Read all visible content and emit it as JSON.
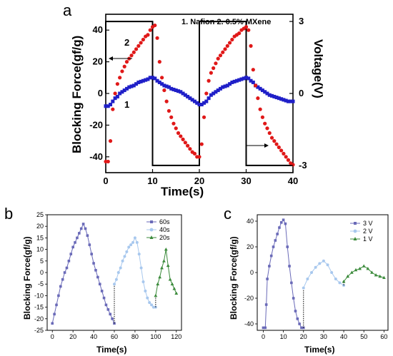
{
  "panels": {
    "a": {
      "letter": "a"
    },
    "b": {
      "letter": "b"
    },
    "c": {
      "letter": "c"
    }
  },
  "chart_data": [
    {
      "id": "a",
      "type": "scatter",
      "xlabel": "Time(s)",
      "ylabel": "Blocking Force(gf/g)",
      "y2label": "Voltage(V)",
      "xlim": [
        0,
        40
      ],
      "ylim": [
        -50,
        50
      ],
      "y2lim": [
        -3.3,
        3.3
      ],
      "xticks": [
        "0",
        "10",
        "20",
        "30",
        "40"
      ],
      "yticks": [
        "-40",
        "-20",
        "0",
        "20",
        "40"
      ],
      "y2ticks": [
        "-3",
        "0",
        "3"
      ],
      "legend_text": "1.  Nafion   2.  0.5% MXene",
      "curve_labels": [
        "1",
        "2"
      ],
      "colors": {
        "nafion": "#1f1fc8",
        "mxene": "#e01818",
        "voltage": "#000000"
      },
      "voltage": {
        "x": [
          0,
          0,
          10,
          10,
          20,
          20,
          30,
          30,
          40
        ],
        "y": [
          0,
          3,
          3,
          -3,
          -3,
          3,
          3,
          -3,
          -3
        ]
      },
      "series": [
        {
          "name": "1",
          "x": [
            0,
            0.5,
            1,
            1.5,
            2,
            2.5,
            3,
            3.5,
            4,
            4.5,
            5,
            5.5,
            6,
            6.5,
            7,
            7.5,
            8,
            8.5,
            9,
            9.5,
            10,
            10.5,
            11,
            11.5,
            12,
            12.5,
            13,
            13.5,
            14,
            14.5,
            15,
            15.5,
            16,
            16.5,
            17,
            17.5,
            18,
            18.5,
            19,
            19.5,
            20,
            20.5,
            21,
            21.5,
            22,
            22.5,
            23,
            23.5,
            24,
            24.5,
            25,
            25.5,
            26,
            26.5,
            27,
            27.5,
            28,
            28.5,
            29,
            29.5,
            30,
            30.5,
            31,
            31.5,
            32,
            32.5,
            33,
            33.5,
            34,
            34.5,
            35,
            35.5,
            36,
            36.5,
            37,
            37.5,
            38,
            38.5,
            39,
            39.5,
            40
          ],
          "y": [
            -8,
            -8,
            -7,
            -5,
            -3,
            -2,
            0,
            1,
            2,
            3,
            4,
            4.5,
            5,
            6,
            7,
            7.5,
            8,
            8.5,
            9,
            10,
            10,
            9.5,
            8,
            7,
            6,
            5,
            4.5,
            4,
            3,
            2.5,
            2,
            1.5,
            1,
            0,
            -1,
            -2,
            -3,
            -4,
            -5,
            -6,
            -7,
            -7,
            -6,
            -5,
            -3,
            -1,
            0,
            1,
            2,
            3,
            4,
            4.5,
            5,
            6,
            7,
            7.5,
            8,
            8.5,
            9,
            9.5,
            10,
            9.5,
            8,
            7,
            5,
            4,
            3,
            2,
            1,
            0,
            -1,
            -1.5,
            -2,
            -2.5,
            -3,
            -3.5,
            -4,
            -4.5,
            -5,
            -5,
            -5
          ]
        },
        {
          "name": "2",
          "x": [
            0,
            0.5,
            1,
            1.5,
            2,
            2.5,
            3,
            3.5,
            4,
            4.5,
            5,
            5.5,
            6,
            6.5,
            7,
            7.5,
            8,
            8.5,
            9,
            9.5,
            10,
            10.5,
            11,
            11.5,
            12,
            12.5,
            13,
            13.5,
            14,
            14.5,
            15,
            15.5,
            16,
            16.5,
            17,
            17.5,
            18,
            18.5,
            19,
            19.5,
            20,
            20.5,
            21,
            21.5,
            22,
            22.5,
            23,
            23.5,
            24,
            24.5,
            25,
            25.5,
            26,
            26.5,
            27,
            27.5,
            28,
            28.5,
            29,
            29.5,
            30,
            30.5,
            31,
            31.5,
            32,
            32.5,
            33,
            33.5,
            34,
            34.5,
            35,
            35.5,
            36,
            36.5,
            37,
            37.5,
            38,
            38.5,
            39,
            39.5,
            40
          ],
          "y": [
            -43,
            -43,
            -30,
            -10,
            0,
            6,
            10,
            14,
            17,
            20,
            22,
            24,
            26,
            28,
            30,
            32,
            34,
            36,
            37,
            40,
            42,
            43,
            35,
            20,
            10,
            2,
            -5,
            -11,
            -15,
            -19,
            -22,
            -25,
            -27,
            -29,
            -31,
            -33,
            -35,
            -37,
            -38,
            -40,
            -40,
            -32,
            -15,
            0,
            8,
            13,
            16,
            19,
            22,
            24,
            26,
            28,
            30,
            32,
            34,
            36,
            37,
            38,
            40,
            41,
            42,
            40,
            30,
            15,
            5,
            -3,
            -10,
            -15,
            -19,
            -22,
            -25,
            -28,
            -30,
            -32,
            -34,
            -36,
            -38,
            -40,
            -42,
            -44,
            -45
          ]
        }
      ]
    },
    {
      "id": "b",
      "type": "line",
      "xlabel": "Time(s)",
      "ylabel": "Blocking Force(gf/g)",
      "xlim": [
        -5,
        125
      ],
      "ylim": [
        -25,
        25
      ],
      "xticks": [
        "0",
        "20",
        "40",
        "60",
        "80",
        "100",
        "120"
      ],
      "yticks": [
        "-25",
        "-20",
        "-15",
        "-10",
        "-5",
        "0",
        "5",
        "10",
        "15",
        "20",
        "25"
      ],
      "colors": {
        "s60": "#6a6ab8",
        "s40": "#a8c8ee",
        "s20": "#3a8a3a"
      },
      "series": [
        {
          "name": "60s",
          "x": [
            0,
            2,
            4,
            6,
            8,
            10,
            12,
            14,
            16,
            18,
            20,
            22,
            24,
            26,
            28,
            30,
            32,
            34,
            36,
            38,
            40,
            42,
            44,
            46,
            48,
            50,
            52,
            54,
            56,
            58,
            60
          ],
          "y": [
            -22,
            -18,
            -14,
            -10,
            -6,
            -3,
            0,
            2,
            5,
            8,
            11,
            13,
            15,
            17,
            19,
            21,
            19,
            16,
            12,
            8,
            4,
            1,
            -2,
            -5,
            -8,
            -11,
            -14,
            -16,
            -18,
            -20,
            -22
          ]
        },
        {
          "name": "40s",
          "x": [
            60,
            62,
            64,
            66,
            68,
            70,
            72,
            74,
            76,
            78,
            80,
            82,
            84,
            86,
            88,
            90,
            92,
            94,
            96,
            98,
            100
          ],
          "y": [
            -5,
            -3,
            0,
            2,
            5,
            7,
            9,
            11,
            12,
            13,
            15,
            13,
            8,
            2,
            -4,
            -8,
            -11,
            -13,
            -14,
            -15,
            -15
          ]
        },
        {
          "name": "20s",
          "x": [
            100,
            102,
            104,
            106,
            108,
            110,
            112,
            114,
            116,
            118,
            120
          ],
          "y": [
            -10,
            -5,
            -2,
            2,
            5,
            10,
            3,
            -3,
            -5,
            -7,
            -9
          ]
        }
      ]
    },
    {
      "id": "c",
      "type": "line",
      "xlabel": "Time(s)",
      "ylabel": "Blocking Force(gf/g)",
      "xlim": [
        -3,
        62
      ],
      "ylim": [
        -45,
        45
      ],
      "xticks": [
        "0",
        "10",
        "20",
        "30",
        "40",
        "50",
        "60"
      ],
      "yticks": [
        "-40",
        "-20",
        "0",
        "20",
        "40"
      ],
      "colors": {
        "v3": "#6a6ab8",
        "v2": "#a8c8ee",
        "v1": "#3a8a3a"
      },
      "series": [
        {
          "name": "3 V",
          "x": [
            0,
            1,
            1.5,
            2,
            3,
            4,
            5,
            6,
            7,
            8,
            9,
            10,
            11,
            12,
            13,
            14,
            15,
            16,
            17,
            18,
            19,
            20
          ],
          "y": [
            -43,
            -43,
            -25,
            -5,
            5,
            13,
            20,
            25,
            30,
            35,
            39,
            41,
            38,
            20,
            5,
            -8,
            -20,
            -30,
            -36,
            -40,
            -43,
            -43
          ]
        },
        {
          "name": "2 V",
          "x": [
            20,
            22,
            24,
            26,
            28,
            30,
            32,
            34,
            36,
            38,
            40
          ],
          "y": [
            -12,
            -5,
            0,
            4,
            7,
            9,
            6,
            0,
            -5,
            -8,
            -10
          ]
        },
        {
          "name": "1 V",
          "x": [
            40,
            42,
            44,
            46,
            48,
            50,
            52,
            54,
            56,
            58,
            60
          ],
          "y": [
            -7,
            -3,
            0,
            2,
            3,
            5,
            3,
            0,
            -2,
            -3,
            -4
          ]
        }
      ]
    }
  ]
}
